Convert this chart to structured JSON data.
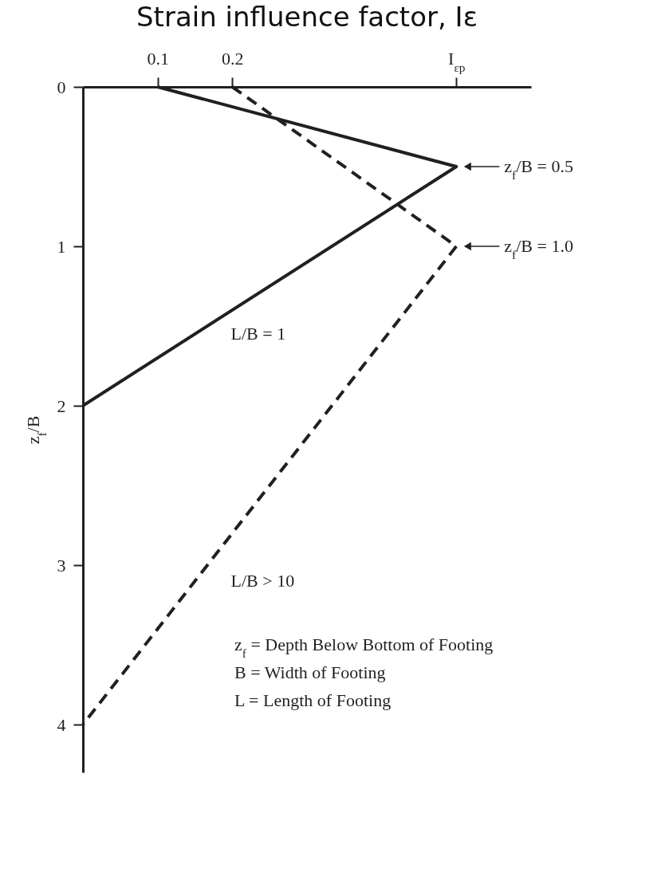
{
  "chart_data": {
    "type": "line",
    "title": "Strain influence factor, Iε",
    "ylabel": "z$_{f}$/B",
    "xlim": [
      0,
      0.6
    ],
    "xticks": [
      0.1,
      0.2,
      {
        "value": 0.5,
        "label": "I$_{εp}$"
      }
    ],
    "ylim": [
      4.3,
      0
    ],
    "yticks": [
      0,
      1,
      2,
      3,
      4
    ],
    "grid": false,
    "marker": "none",
    "series": [
      {
        "name": "L/B = 1",
        "color": "#231f20",
        "line_style": "solid",
        "x": [
          0.1,
          0.5,
          0
        ],
        "values": [
          0,
          0.5,
          2
        ]
      },
      {
        "name": "L/B > 10",
        "color": "#231f20",
        "line_style": "dashed",
        "x": [
          0.2,
          0.5,
          0
        ],
        "values": [
          0,
          1,
          4
        ]
      }
    ],
    "annotations": [
      {
        "text": "z$_{f}$/B = 0.5",
        "x": 0.5,
        "y": 0.5
      },
      {
        "text": "z$_{f}$/B = 1.0",
        "x": 0.5,
        "y": 1
      },
      "z$_{f}$ = Depth Below Bottom of Footing",
      "B = Width of Footing",
      "L = Length of Footing"
    ]
  }
}
